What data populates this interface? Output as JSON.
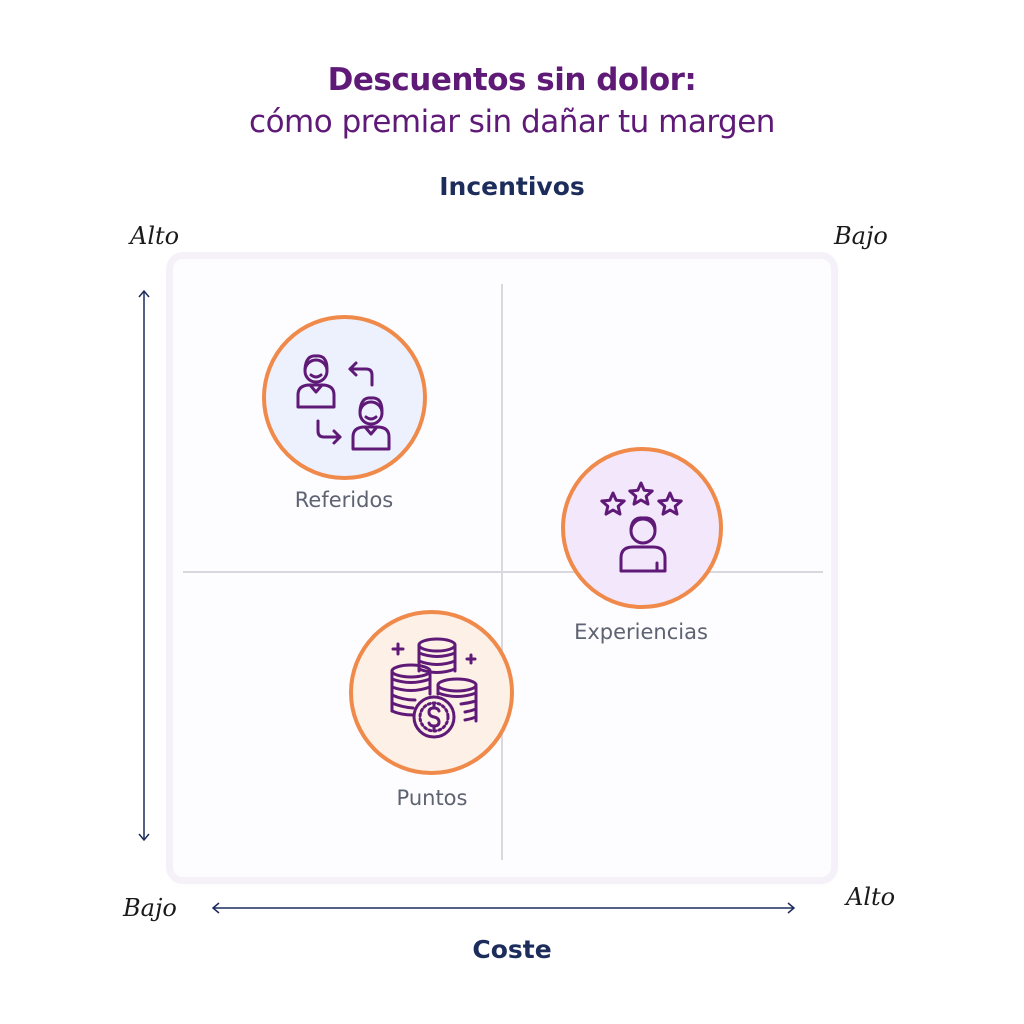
{
  "title": {
    "line1": "Descuentos sin dolor:",
    "line2": "cómo premiar sin dañar tu margen"
  },
  "axes": {
    "y_title": "Incentivos",
    "x_title": "Coste",
    "y_top": "Alto",
    "y_bottom": "Bajo",
    "x_left": "Bajo",
    "x_right": "Alto",
    "top_right_corner": "Bajo"
  },
  "items": [
    {
      "label": "Referidos",
      "icon": "referral-people-icon"
    },
    {
      "label": "Experiencias",
      "icon": "star-rating-person-icon"
    },
    {
      "label": "Puntos",
      "icon": "coin-stack-icon"
    }
  ],
  "colors": {
    "title": "#5f1a78",
    "axis_title": "#1c2c5b",
    "bubble_border": "#f08a4b",
    "icon_stroke": "#5f1a78"
  }
}
